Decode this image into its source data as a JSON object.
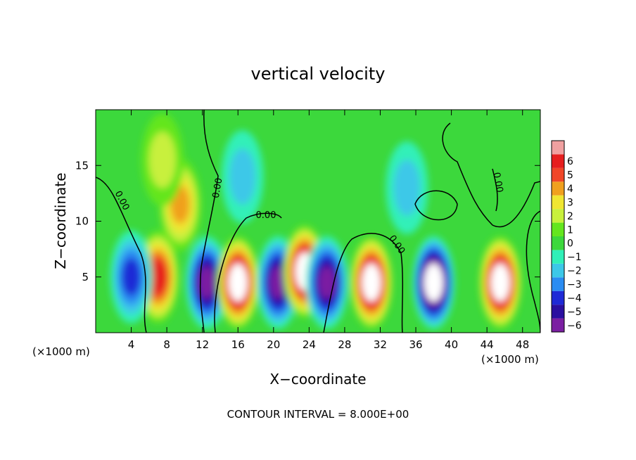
{
  "chart_data": {
    "type": "heatmap",
    "title": "vertical velocity",
    "xlabel": "X−coordinate",
    "ylabel": "Z−coordinate",
    "x_unit": "(×1000 m)",
    "footer": "CONTOUR INTERVAL = 8.000E+00",
    "xlim": [
      0,
      50
    ],
    "ylim": [
      0,
      20
    ],
    "x_ticks": [
      4,
      8,
      12,
      16,
      20,
      24,
      28,
      32,
      36,
      40,
      44,
      48
    ],
    "y_ticks": [
      5,
      10,
      15
    ],
    "x_tick_labels": [
      "4",
      "8",
      "12",
      "16",
      "20",
      "24",
      "28",
      "32",
      "36",
      "40",
      "44",
      "48"
    ],
    "y_tick_labels": [
      "5",
      "10",
      "15"
    ],
    "colorbar": {
      "levels": [
        -6,
        -5,
        -4,
        -3,
        -2,
        -1,
        0,
        1,
        2,
        3,
        4,
        5,
        6
      ],
      "labels": [
        "−6",
        "−5",
        "−4",
        "−3",
        "−2",
        "−1",
        "0",
        "1",
        "2",
        "3",
        "4",
        "5",
        "6"
      ],
      "colors": [
        "#7b1fa2",
        "#2a0fa0",
        "#1f2ad6",
        "#2a8cf2",
        "#3cc8e8",
        "#30f0b8",
        "#3cd83c",
        "#64e61e",
        "#c8f03c",
        "#f0e632",
        "#f0a01e",
        "#f04628",
        "#e61e1e",
        "#f0a0a0"
      ]
    },
    "contour_labels": [
      "0.00",
      "0.00",
      "0.00",
      "0.00",
      "0.00"
    ],
    "cells": [
      {
        "x": 7.0,
        "z": 5.0,
        "w": 6
      },
      {
        "x": 9.5,
        "z": 11.5,
        "w": 4
      },
      {
        "x": 7.5,
        "z": 15.5,
        "w": 2
      },
      {
        "x": 4.0,
        "z": 5.0,
        "w": -4
      },
      {
        "x": 12.5,
        "z": 4.5,
        "w": -6
      },
      {
        "x": 16.0,
        "z": 4.5,
        "w": 8
      },
      {
        "x": 20.5,
        "z": 4.5,
        "w": -6
      },
      {
        "x": 23.5,
        "z": 5.5,
        "w": 8
      },
      {
        "x": 26.0,
        "z": 4.5,
        "w": -6
      },
      {
        "x": 31.0,
        "z": 4.5,
        "w": 8
      },
      {
        "x": 38.0,
        "z": 4.5,
        "w": -8
      },
      {
        "x": 45.5,
        "z": 4.5,
        "w": 8
      },
      {
        "x": 35.0,
        "z": 13.0,
        "w": -2
      },
      {
        "x": 16.5,
        "z": 14.0,
        "w": -2
      }
    ]
  }
}
